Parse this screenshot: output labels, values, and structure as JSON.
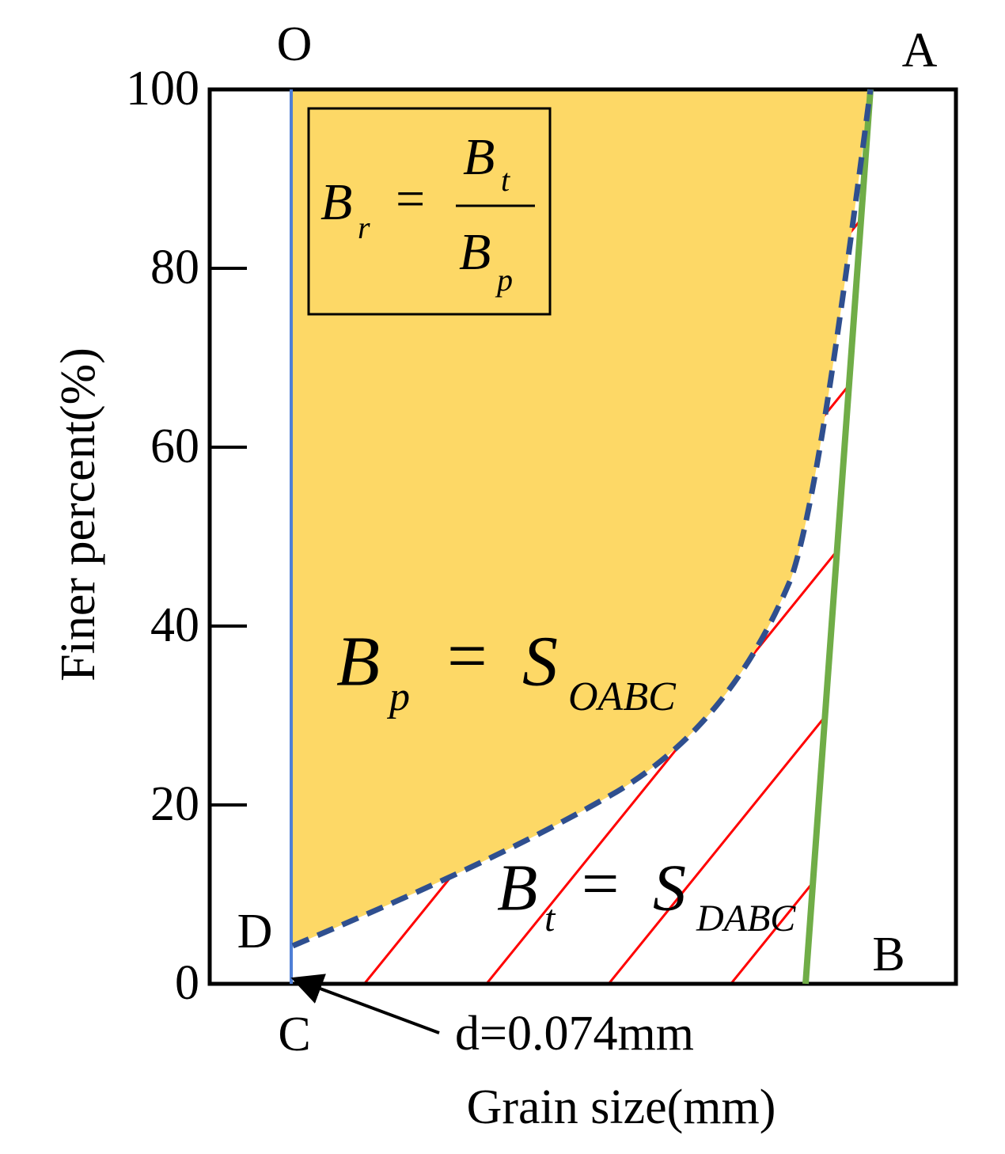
{
  "points": {
    "O": "O",
    "A": "A",
    "B": "B",
    "C": "C",
    "D": "D"
  },
  "y_axis": {
    "label": "Finer percent(%)",
    "ticks": [
      0,
      20,
      40,
      60,
      80,
      100
    ]
  },
  "x_axis": {
    "label": "Grain size(mm)",
    "annotation": "d=0.074mm"
  },
  "formulas": {
    "ratio": {
      "lhs": "B",
      "lhs_sub": "r",
      "eq": "=",
      "num": "B",
      "num_sub": "t",
      "den": "B",
      "den_sub": "p"
    },
    "bp": {
      "lhs": "B",
      "lhs_sub": "p",
      "eq": "=",
      "rhs": "S",
      "rhs_sub": "OABC"
    },
    "bt": {
      "lhs": "B",
      "lhs_sub": "t",
      "eq": "=",
      "rhs": "S",
      "rhs_sub": "DABC"
    }
  }
}
